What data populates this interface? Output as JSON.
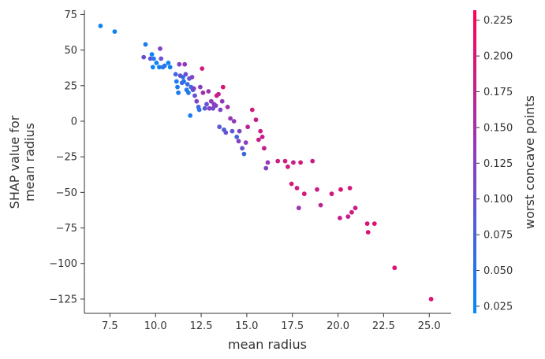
{
  "chart_data": {
    "type": "scatter",
    "xlabel": "mean radius",
    "ylabel_lines": [
      "SHAP value for",
      "mean radius"
    ],
    "colorbar_label": "worst concave points",
    "xlim": [
      6.1,
      26.2
    ],
    "ylim": [
      -135,
      78
    ],
    "xticks": [
      7.5,
      10.0,
      12.5,
      15.0,
      17.5,
      20.0,
      22.5,
      25.0
    ],
    "xtick_labels": [
      "7.5",
      "10.0",
      "12.5",
      "15.0",
      "17.5",
      "20.0",
      "22.5",
      "25.0"
    ],
    "yticks": [
      75,
      50,
      25,
      0,
      -25,
      -50,
      -75,
      -100,
      -125
    ],
    "ytick_labels": [
      "75",
      "50",
      "25",
      "0",
      "−25",
      "−50",
      "−75",
      "−100",
      "−125"
    ],
    "cbar_range": [
      0.02,
      0.232
    ],
    "cbar_ticks": [
      0.025,
      0.05,
      0.075,
      0.1,
      0.125,
      0.15,
      0.175,
      0.2,
      0.225
    ],
    "cbar_tick_labels": [
      "0.025",
      "0.050",
      "0.075",
      "0.100",
      "0.125",
      "0.150",
      "0.175",
      "0.200",
      "0.225"
    ],
    "colormap": [
      "#008afb",
      "#8a3ec3",
      "#ff0052"
    ],
    "points": [
      [
        6.98,
        67,
        0.03
      ],
      [
        7.76,
        63,
        0.03
      ],
      [
        9.35,
        45,
        0.1
      ],
      [
        9.45,
        54,
        0.04
      ],
      [
        9.72,
        44,
        0.1
      ],
      [
        9.8,
        47,
        0.03
      ],
      [
        9.85,
        38,
        0.03
      ],
      [
        9.9,
        44,
        0.04
      ],
      [
        10.05,
        41,
        0.03
      ],
      [
        10.2,
        38,
        0.03
      ],
      [
        10.25,
        51,
        0.12
      ],
      [
        10.3,
        44,
        0.1
      ],
      [
        10.4,
        38,
        0.05
      ],
      [
        10.5,
        39,
        0.05
      ],
      [
        10.7,
        41,
        0.03
      ],
      [
        10.8,
        38,
        0.03
      ],
      [
        11.1,
        33,
        0.07
      ],
      [
        11.15,
        28,
        0.04
      ],
      [
        11.2,
        24,
        0.04
      ],
      [
        11.25,
        20,
        0.04
      ],
      [
        11.3,
        40,
        0.12
      ],
      [
        11.35,
        32,
        0.1
      ],
      [
        11.45,
        27,
        0.07
      ],
      [
        11.5,
        31,
        0.06
      ],
      [
        11.55,
        28,
        0.05
      ],
      [
        11.6,
        40,
        0.14
      ],
      [
        11.65,
        33,
        0.1
      ],
      [
        11.7,
        22,
        0.05
      ],
      [
        11.75,
        26,
        0.06
      ],
      [
        11.8,
        20,
        0.04
      ],
      [
        11.85,
        30,
        0.09
      ],
      [
        11.9,
        4,
        0.04
      ],
      [
        11.95,
        24,
        0.07
      ],
      [
        12.0,
        31,
        0.12
      ],
      [
        12.05,
        22,
        0.08
      ],
      [
        12.1,
        23,
        0.12
      ],
      [
        12.15,
        18,
        0.1
      ],
      [
        12.25,
        14,
        0.12
      ],
      [
        12.35,
        10,
        0.07
      ],
      [
        12.4,
        8,
        0.05
      ],
      [
        12.45,
        24,
        0.13
      ],
      [
        12.55,
        37,
        0.19
      ],
      [
        12.6,
        20,
        0.15
      ],
      [
        12.7,
        9,
        0.09
      ],
      [
        12.8,
        12,
        0.1
      ],
      [
        12.9,
        21,
        0.14
      ],
      [
        12.95,
        9,
        0.12
      ],
      [
        13.05,
        14,
        0.13
      ],
      [
        13.15,
        9,
        0.11
      ],
      [
        13.2,
        12,
        0.13
      ],
      [
        13.3,
        11,
        0.12
      ],
      [
        13.35,
        18,
        0.19
      ],
      [
        13.45,
        19,
        0.18
      ],
      [
        13.5,
        -4,
        0.09
      ],
      [
        13.55,
        8,
        0.12
      ],
      [
        13.65,
        14,
        0.13
      ],
      [
        13.7,
        24,
        0.2
      ],
      [
        13.75,
        -6,
        0.08
      ],
      [
        13.85,
        -8,
        0.1
      ],
      [
        13.95,
        10,
        0.15
      ],
      [
        14.1,
        2,
        0.14
      ],
      [
        14.2,
        -7,
        0.09
      ],
      [
        14.3,
        0,
        0.13
      ],
      [
        14.45,
        -11,
        0.07
      ],
      [
        14.55,
        -14,
        0.12
      ],
      [
        14.6,
        -7,
        0.12
      ],
      [
        14.75,
        -19,
        0.1
      ],
      [
        14.85,
        -23,
        0.07
      ],
      [
        14.95,
        -15,
        0.13
      ],
      [
        15.05,
        -4,
        0.17
      ],
      [
        15.3,
        8,
        0.19
      ],
      [
        15.5,
        1,
        0.18
      ],
      [
        15.65,
        -13,
        0.18
      ],
      [
        15.75,
        -7,
        0.18
      ],
      [
        15.85,
        -11,
        0.18
      ],
      [
        15.95,
        -19,
        0.18
      ],
      [
        16.05,
        -33,
        0.12
      ],
      [
        16.15,
        -29,
        0.14
      ],
      [
        16.7,
        -28,
        0.18
      ],
      [
        17.1,
        -28,
        0.19
      ],
      [
        17.25,
        -32,
        0.19
      ],
      [
        17.45,
        -44,
        0.19
      ],
      [
        17.55,
        -29,
        0.18
      ],
      [
        17.75,
        -47,
        0.19
      ],
      [
        17.85,
        -61,
        0.14
      ],
      [
        17.95,
        -29,
        0.19
      ],
      [
        18.15,
        -51,
        0.19
      ],
      [
        18.6,
        -28,
        0.18
      ],
      [
        18.85,
        -48,
        0.18
      ],
      [
        19.05,
        -59,
        0.17
      ],
      [
        19.65,
        -51,
        0.19
      ],
      [
        20.1,
        -68,
        0.18
      ],
      [
        20.15,
        -48,
        0.2
      ],
      [
        20.55,
        -67,
        0.18
      ],
      [
        20.65,
        -47,
        0.19
      ],
      [
        20.75,
        -64,
        0.19
      ],
      [
        20.95,
        -61,
        0.18
      ],
      [
        21.6,
        -72,
        0.2
      ],
      [
        21.65,
        -78,
        0.2
      ],
      [
        22.0,
        -72,
        0.2
      ],
      [
        23.1,
        -103,
        0.2
      ],
      [
        25.1,
        -125,
        0.2
      ]
    ]
  }
}
